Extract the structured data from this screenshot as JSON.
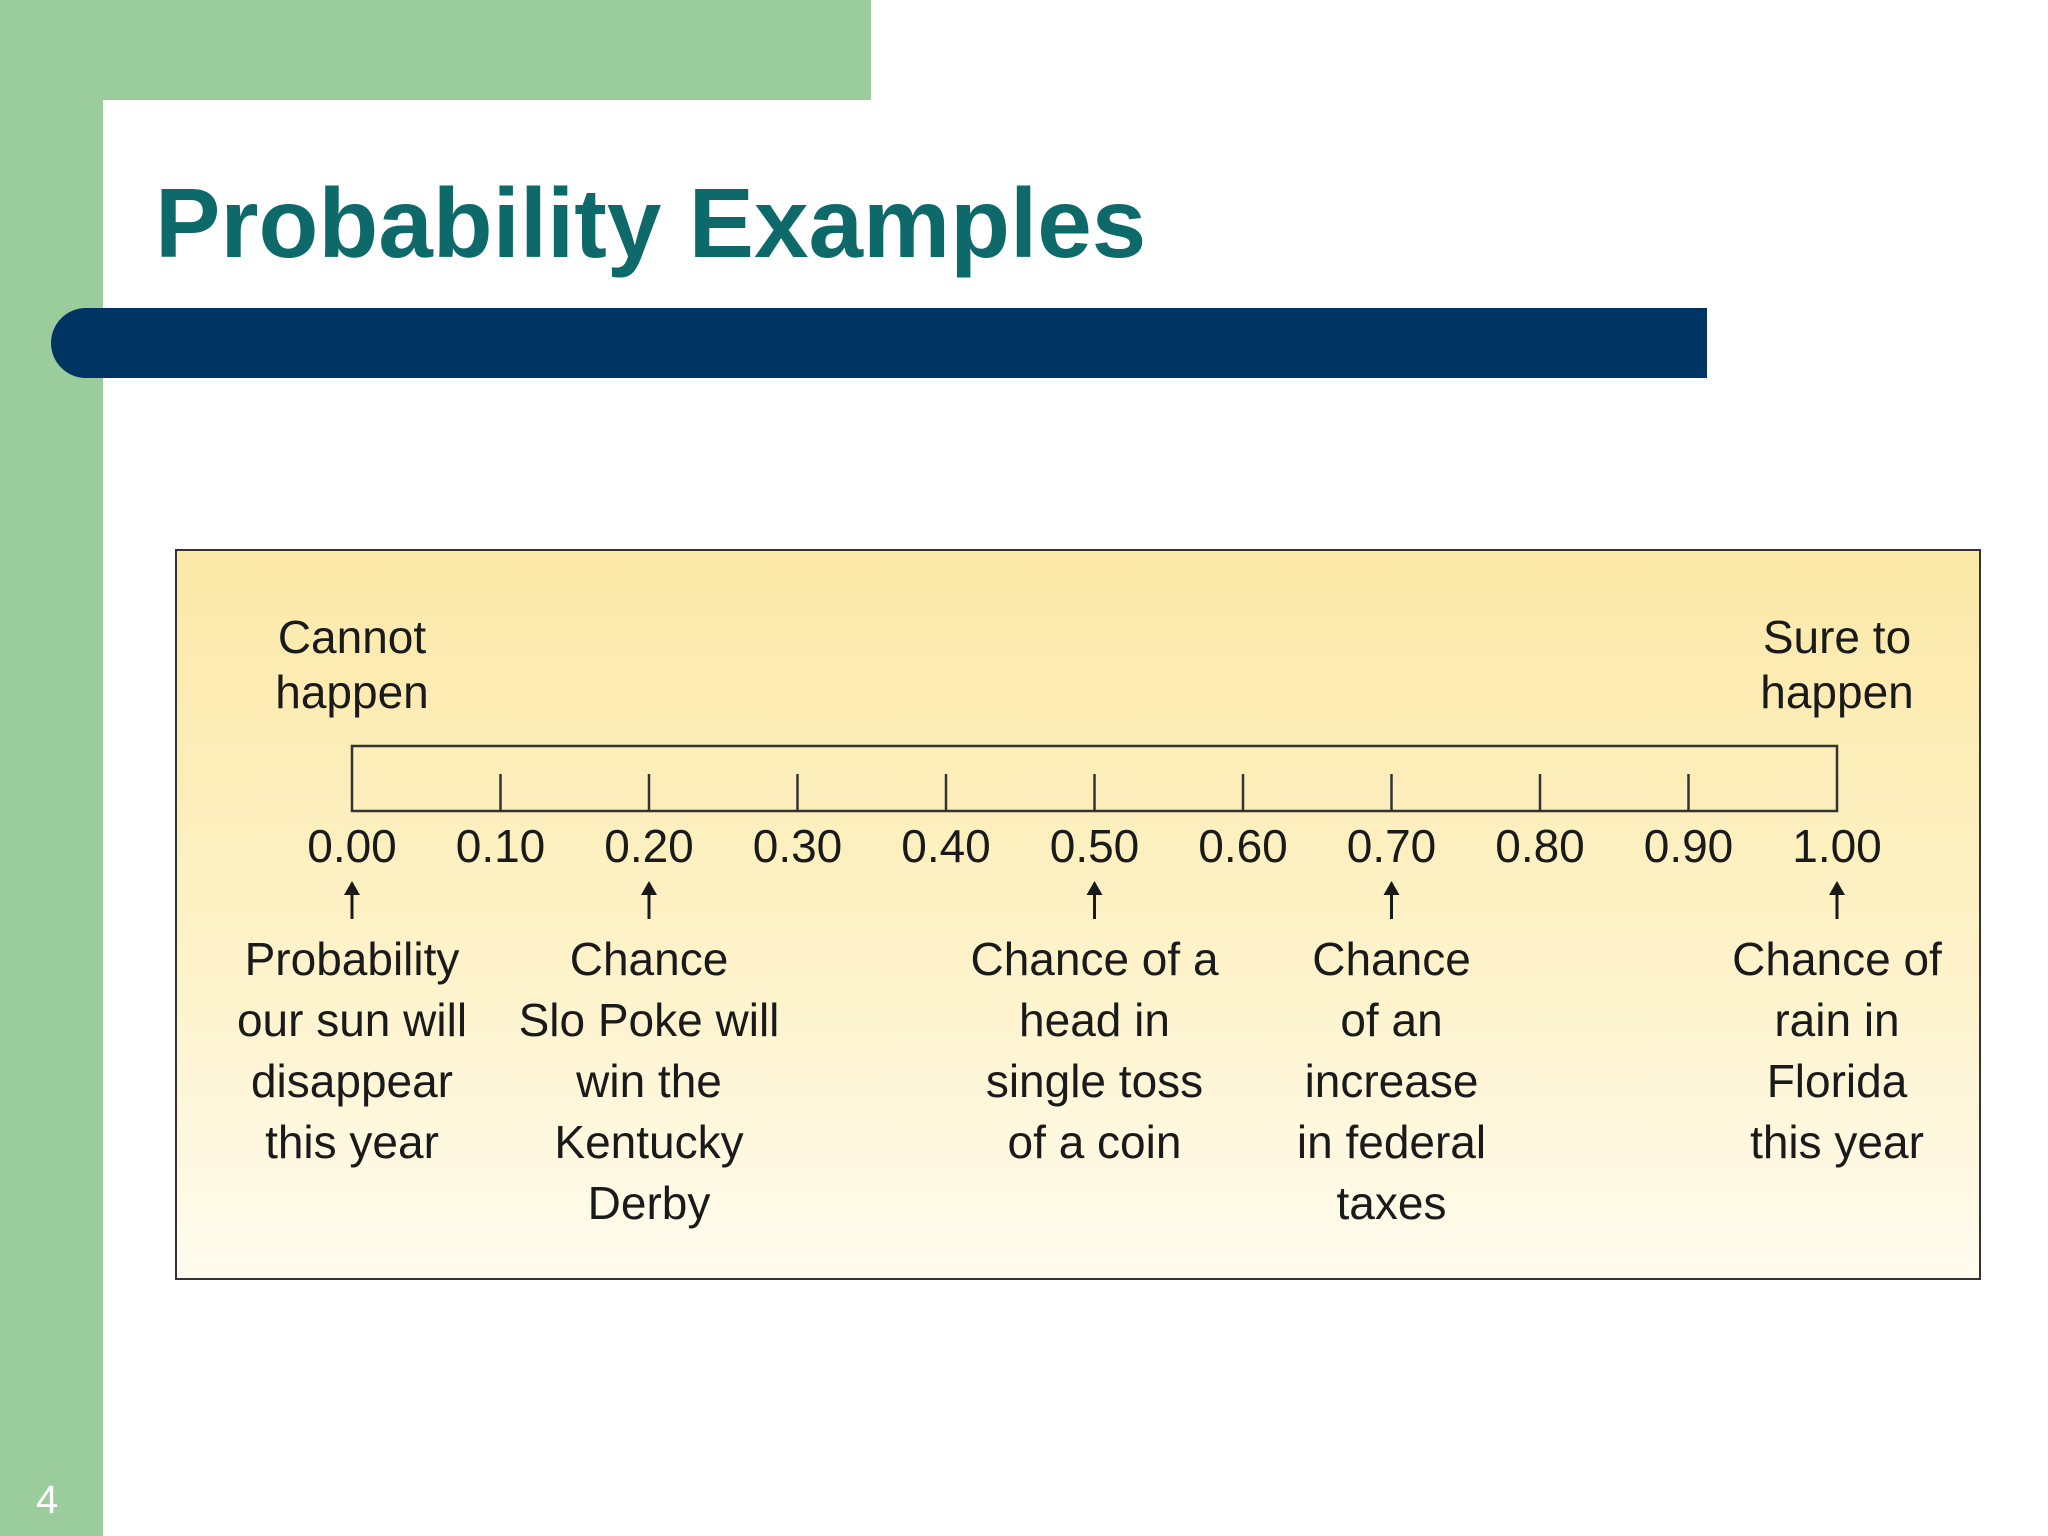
{
  "slide": {
    "title": "Probability Examples",
    "page_number": "4"
  },
  "diagram": {
    "end_labels": {
      "left": [
        "Cannot",
        "happen"
      ],
      "right": [
        "Sure to",
        "happen"
      ]
    },
    "ticks": [
      "0.00",
      "0.10",
      "0.20",
      "0.30",
      "0.40",
      "0.50",
      "0.60",
      "0.70",
      "0.80",
      "0.90",
      "1.00"
    ],
    "examples": [
      {
        "value": 0.0,
        "lines": [
          "Probability",
          "our sun will",
          "disappear",
          "this year"
        ]
      },
      {
        "value": 0.2,
        "lines": [
          "Chance",
          "Slo Poke will",
          "win the",
          "Kentucky",
          "Derby"
        ]
      },
      {
        "value": 0.5,
        "lines": [
          "Chance of a",
          "head in",
          "single toss",
          "of a coin"
        ]
      },
      {
        "value": 0.7,
        "lines": [
          "Chance",
          "of an",
          "increase",
          "in federal",
          "taxes"
        ]
      },
      {
        "value": 1.0,
        "lines": [
          "Chance of",
          "rain in",
          "Florida",
          "this year"
        ]
      }
    ]
  },
  "colors": {
    "side_band": "#9acc9c",
    "title_text": "#0e6a6a",
    "title_bar": "#003462",
    "figure_bg": "#fce9a8"
  }
}
